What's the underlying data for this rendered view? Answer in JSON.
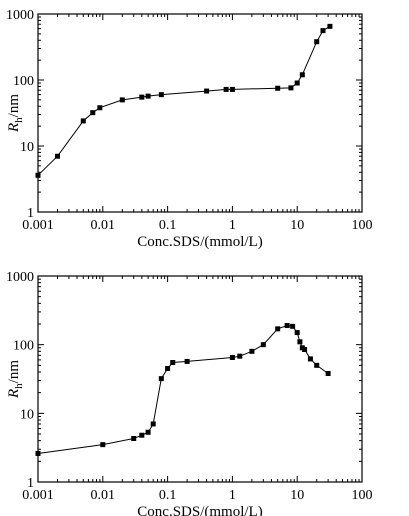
{
  "chart_data": [
    {
      "type": "scatter",
      "xscale": "log",
      "yscale": "log",
      "xlim": [
        0.001,
        100
      ],
      "ylim": [
        1,
        1000
      ],
      "xlabel": "Conc.SDS/(mmol/L)",
      "ylabel_main": "R",
      "ylabel_sub": "h",
      "ylabel_rest": "/nm",
      "xtick_labels": [
        "0.001",
        "0.01",
        "0.1",
        "1",
        "10",
        "100"
      ],
      "ytick_labels": [
        "1",
        "10",
        "100",
        "1000"
      ],
      "series": [
        {
          "x": [
            0.001,
            0.002,
            0.005,
            0.007,
            0.009,
            0.02,
            0.04,
            0.05,
            0.08,
            0.4,
            0.8,
            1.0,
            5.0,
            8.0,
            10.0,
            12.0,
            20.0,
            25.0,
            32.0
          ],
          "y": [
            3.6,
            7,
            24,
            32,
            38,
            50,
            55,
            57,
            60,
            68,
            72,
            72,
            75,
            76,
            90,
            120,
            380,
            560,
            650
          ]
        }
      ]
    },
    {
      "type": "scatter",
      "xscale": "log",
      "yscale": "log",
      "xlim": [
        0.001,
        100
      ],
      "ylim": [
        1,
        1000
      ],
      "xlabel": "Conc.SDS/(mmol/L)",
      "ylabel_main": "R",
      "ylabel_sub": "h",
      "ylabel_rest": "/nm",
      "xtick_labels": [
        "0.001",
        "0.01",
        "0.1",
        "1",
        "10",
        "100"
      ],
      "ytick_labels": [
        "1",
        "10",
        "100",
        "1000"
      ],
      "series": [
        {
          "x": [
            0.001,
            0.01,
            0.03,
            0.04,
            0.05,
            0.06,
            0.08,
            0.1,
            0.12,
            0.2,
            1.0,
            1.3,
            2.0,
            3.0,
            5.0,
            7.0,
            8.5,
            10.0,
            11.0,
            12.0,
            13.0,
            16.0,
            20.0,
            30.0
          ],
          "y": [
            2.6,
            3.5,
            4.3,
            4.8,
            5.3,
            7,
            32,
            45,
            55,
            57,
            65,
            68,
            80,
            100,
            170,
            190,
            185,
            150,
            110,
            90,
            85,
            62,
            50,
            38
          ]
        }
      ]
    }
  ]
}
